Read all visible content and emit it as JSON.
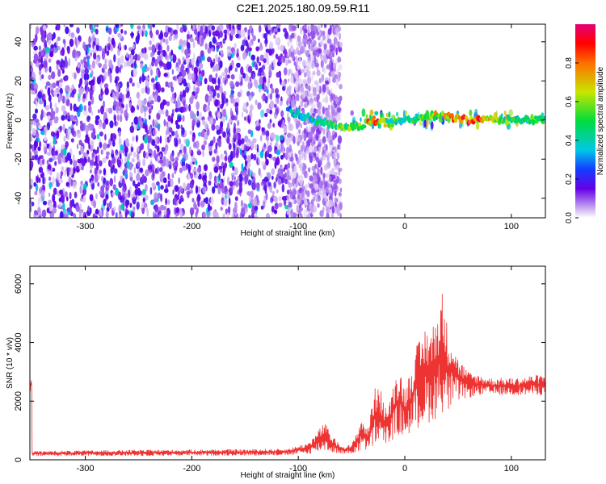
{
  "title": "C2E1.2025.180.09.59.R11",
  "colorbar": {
    "label": "Normalized spectral amplitude",
    "ticks": [
      "0.0",
      "0.2",
      "0.4",
      "0.6",
      "0.8"
    ],
    "tick_values": [
      0.0,
      0.2,
      0.4,
      0.6,
      0.8
    ],
    "range": [
      0,
      1
    ]
  },
  "chart_data": [
    {
      "type": "heatmap",
      "title": "",
      "xlabel": "Height of straight line (km)",
      "ylabel": "Frequency (Hz)",
      "xlim": [
        -352,
        132
      ],
      "ylim": [
        -50,
        49
      ],
      "xticks": [
        -300,
        -200,
        -100,
        0,
        100
      ],
      "xtick_labels": [
        "-300",
        "-200",
        "-100",
        "0",
        "100"
      ],
      "yticks": [
        -40,
        -20,
        0,
        20,
        40
      ],
      "ytick_labels": [
        "-40",
        "-20",
        "0",
        "20",
        "40"
      ],
      "regions": [
        {
          "x": [
            -352,
            -110
          ],
          "freq": [
            -50,
            49
          ],
          "amplitude": 0.12
        },
        {
          "x": [
            -110,
            -60
          ],
          "freq": [
            -50,
            49
          ],
          "amplitude": 0.08
        },
        {
          "x": [
            -60,
            132
          ],
          "freq": [
            -4,
            4
          ],
          "amplitude": 0.45
        }
      ],
      "ridge": [
        {
          "x": -110,
          "freq": 5,
          "amplitude": 0.35
        },
        {
          "x": -85,
          "freq": 0,
          "amplitude": 0.45
        },
        {
          "x": -60,
          "freq": -4,
          "amplitude": 0.55
        },
        {
          "x": -40,
          "freq": -3,
          "amplitude": 0.55
        },
        {
          "x": -30,
          "freq": 0,
          "amplitude": 0.9
        },
        {
          "x": -15,
          "freq": -2,
          "amplitude": 0.5
        },
        {
          "x": 0,
          "freq": 0,
          "amplitude": 0.45
        },
        {
          "x": 20,
          "freq": 2,
          "amplitude": 0.6
        },
        {
          "x": 40,
          "freq": 2,
          "amplitude": 0.7
        },
        {
          "x": 60,
          "freq": 0,
          "amplitude": 0.9
        },
        {
          "x": 90,
          "freq": 0,
          "amplitude": 0.6
        },
        {
          "x": 132,
          "freq": 0,
          "amplitude": 0.45
        }
      ]
    },
    {
      "type": "line",
      "title": "",
      "xlabel": "Height of straight line (km)",
      "ylabel": "SNR (10 * v/v)",
      "xlim": [
        -352,
        132
      ],
      "ylim": [
        0,
        6600
      ],
      "xticks": [
        -300,
        -200,
        -100,
        0,
        100
      ],
      "xtick_labels": [
        "-300",
        "-200",
        "-100",
        "0",
        "100"
      ],
      "yticks": [
        0,
        2000,
        4000,
        6000
      ],
      "ytick_labels": [
        "0",
        "2000",
        "4000",
        "6000"
      ],
      "color": "#ee3333",
      "series": [
        {
          "x": [
            -350,
            -300,
            -250,
            -200,
            -150,
            -110,
            -90,
            -75,
            -70,
            -60,
            -50,
            -40,
            -35,
            -30,
            -25,
            -20,
            -15,
            -10,
            -5,
            0,
            5,
            10,
            15,
            20,
            25,
            30,
            35,
            40,
            45,
            50,
            60,
            70,
            80,
            90,
            100,
            110,
            120,
            130
          ],
          "high": [
            300,
            320,
            340,
            350,
            360,
            380,
            600,
            1300,
            900,
            500,
            500,
            1500,
            1000,
            2200,
            2800,
            2000,
            1800,
            2800,
            3200,
            2500,
            3000,
            3900,
            4100,
            4700,
            4500,
            5000,
            5800,
            4600,
            4200,
            3500,
            3000,
            2900,
            2800,
            2800,
            2800,
            2800,
            2900,
            2900
          ],
          "low": [
            120,
            130,
            130,
            140,
            140,
            150,
            200,
            300,
            250,
            200,
            200,
            300,
            300,
            400,
            500,
            400,
            600,
            700,
            800,
            800,
            900,
            1000,
            1100,
            1200,
            1300,
            1400,
            1600,
            1500,
            1800,
            2000,
            2100,
            2200,
            2200,
            2200,
            2200,
            2200,
            2200,
            2200
          ]
        }
      ]
    }
  ]
}
